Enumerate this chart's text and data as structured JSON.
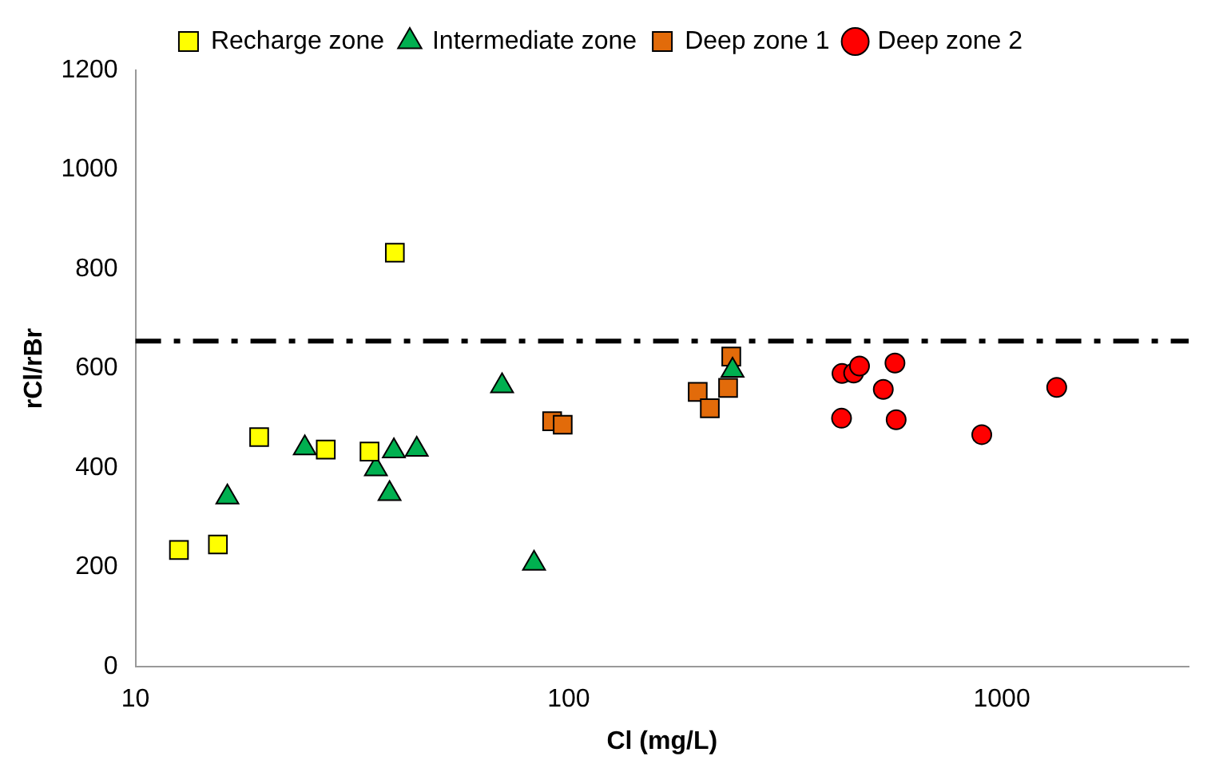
{
  "chart_data": {
    "type": "scatter",
    "xlabel": "Cl (mg/L)",
    "ylabel": "rCl/rBr",
    "log": "x",
    "xlim": [
      10,
      2700
    ],
    "xticks": [
      10,
      100,
      1000
    ],
    "ylim": [
      0,
      1200
    ],
    "yticks": [
      0,
      200,
      400,
      600,
      800,
      1000,
      1200
    ],
    "grid": false,
    "legend": "top",
    "series": [
      {
        "name": "Recharge zone",
        "color": "#ffff00",
        "marker": "square",
        "x": [
          12.6,
          15.5,
          19.3,
          27.5,
          34.7,
          39.7
        ],
        "values": [
          235,
          246,
          462,
          437,
          433,
          833
        ]
      },
      {
        "name": "Intermediate zone",
        "color": "#00b050",
        "marker": "triangle",
        "x": [
          16.3,
          24.6,
          35.9,
          39.5,
          38.6,
          44.6,
          70.2,
          83.2,
          239
        ],
        "values": [
          341,
          440,
          398,
          434,
          348,
          437,
          565,
          208,
          596
        ]
      },
      {
        "name": "Deep zone 1",
        "color": "#e26b0a",
        "marker": "square",
        "x": [
          91.6,
          96.9,
          198.6,
          211.8,
          233.4,
          237.4
        ],
        "values": [
          494,
          487,
          553,
          520,
          561,
          624
        ]
      },
      {
        "name": "Deep zone 2",
        "color": "#ff0000",
        "marker": "circle",
        "x": [
          427.6,
          455,
          469.4,
          566.7,
          532.6,
          426.6,
          570.3,
          899,
          1339
        ],
        "values": [
          590,
          591,
          605,
          611,
          558,
          500,
          497,
          467,
          562
        ]
      }
    ],
    "ref_lines": [
      {
        "axis": "y",
        "value": 655,
        "color": "#000000",
        "line_style": "dashed"
      }
    ]
  }
}
